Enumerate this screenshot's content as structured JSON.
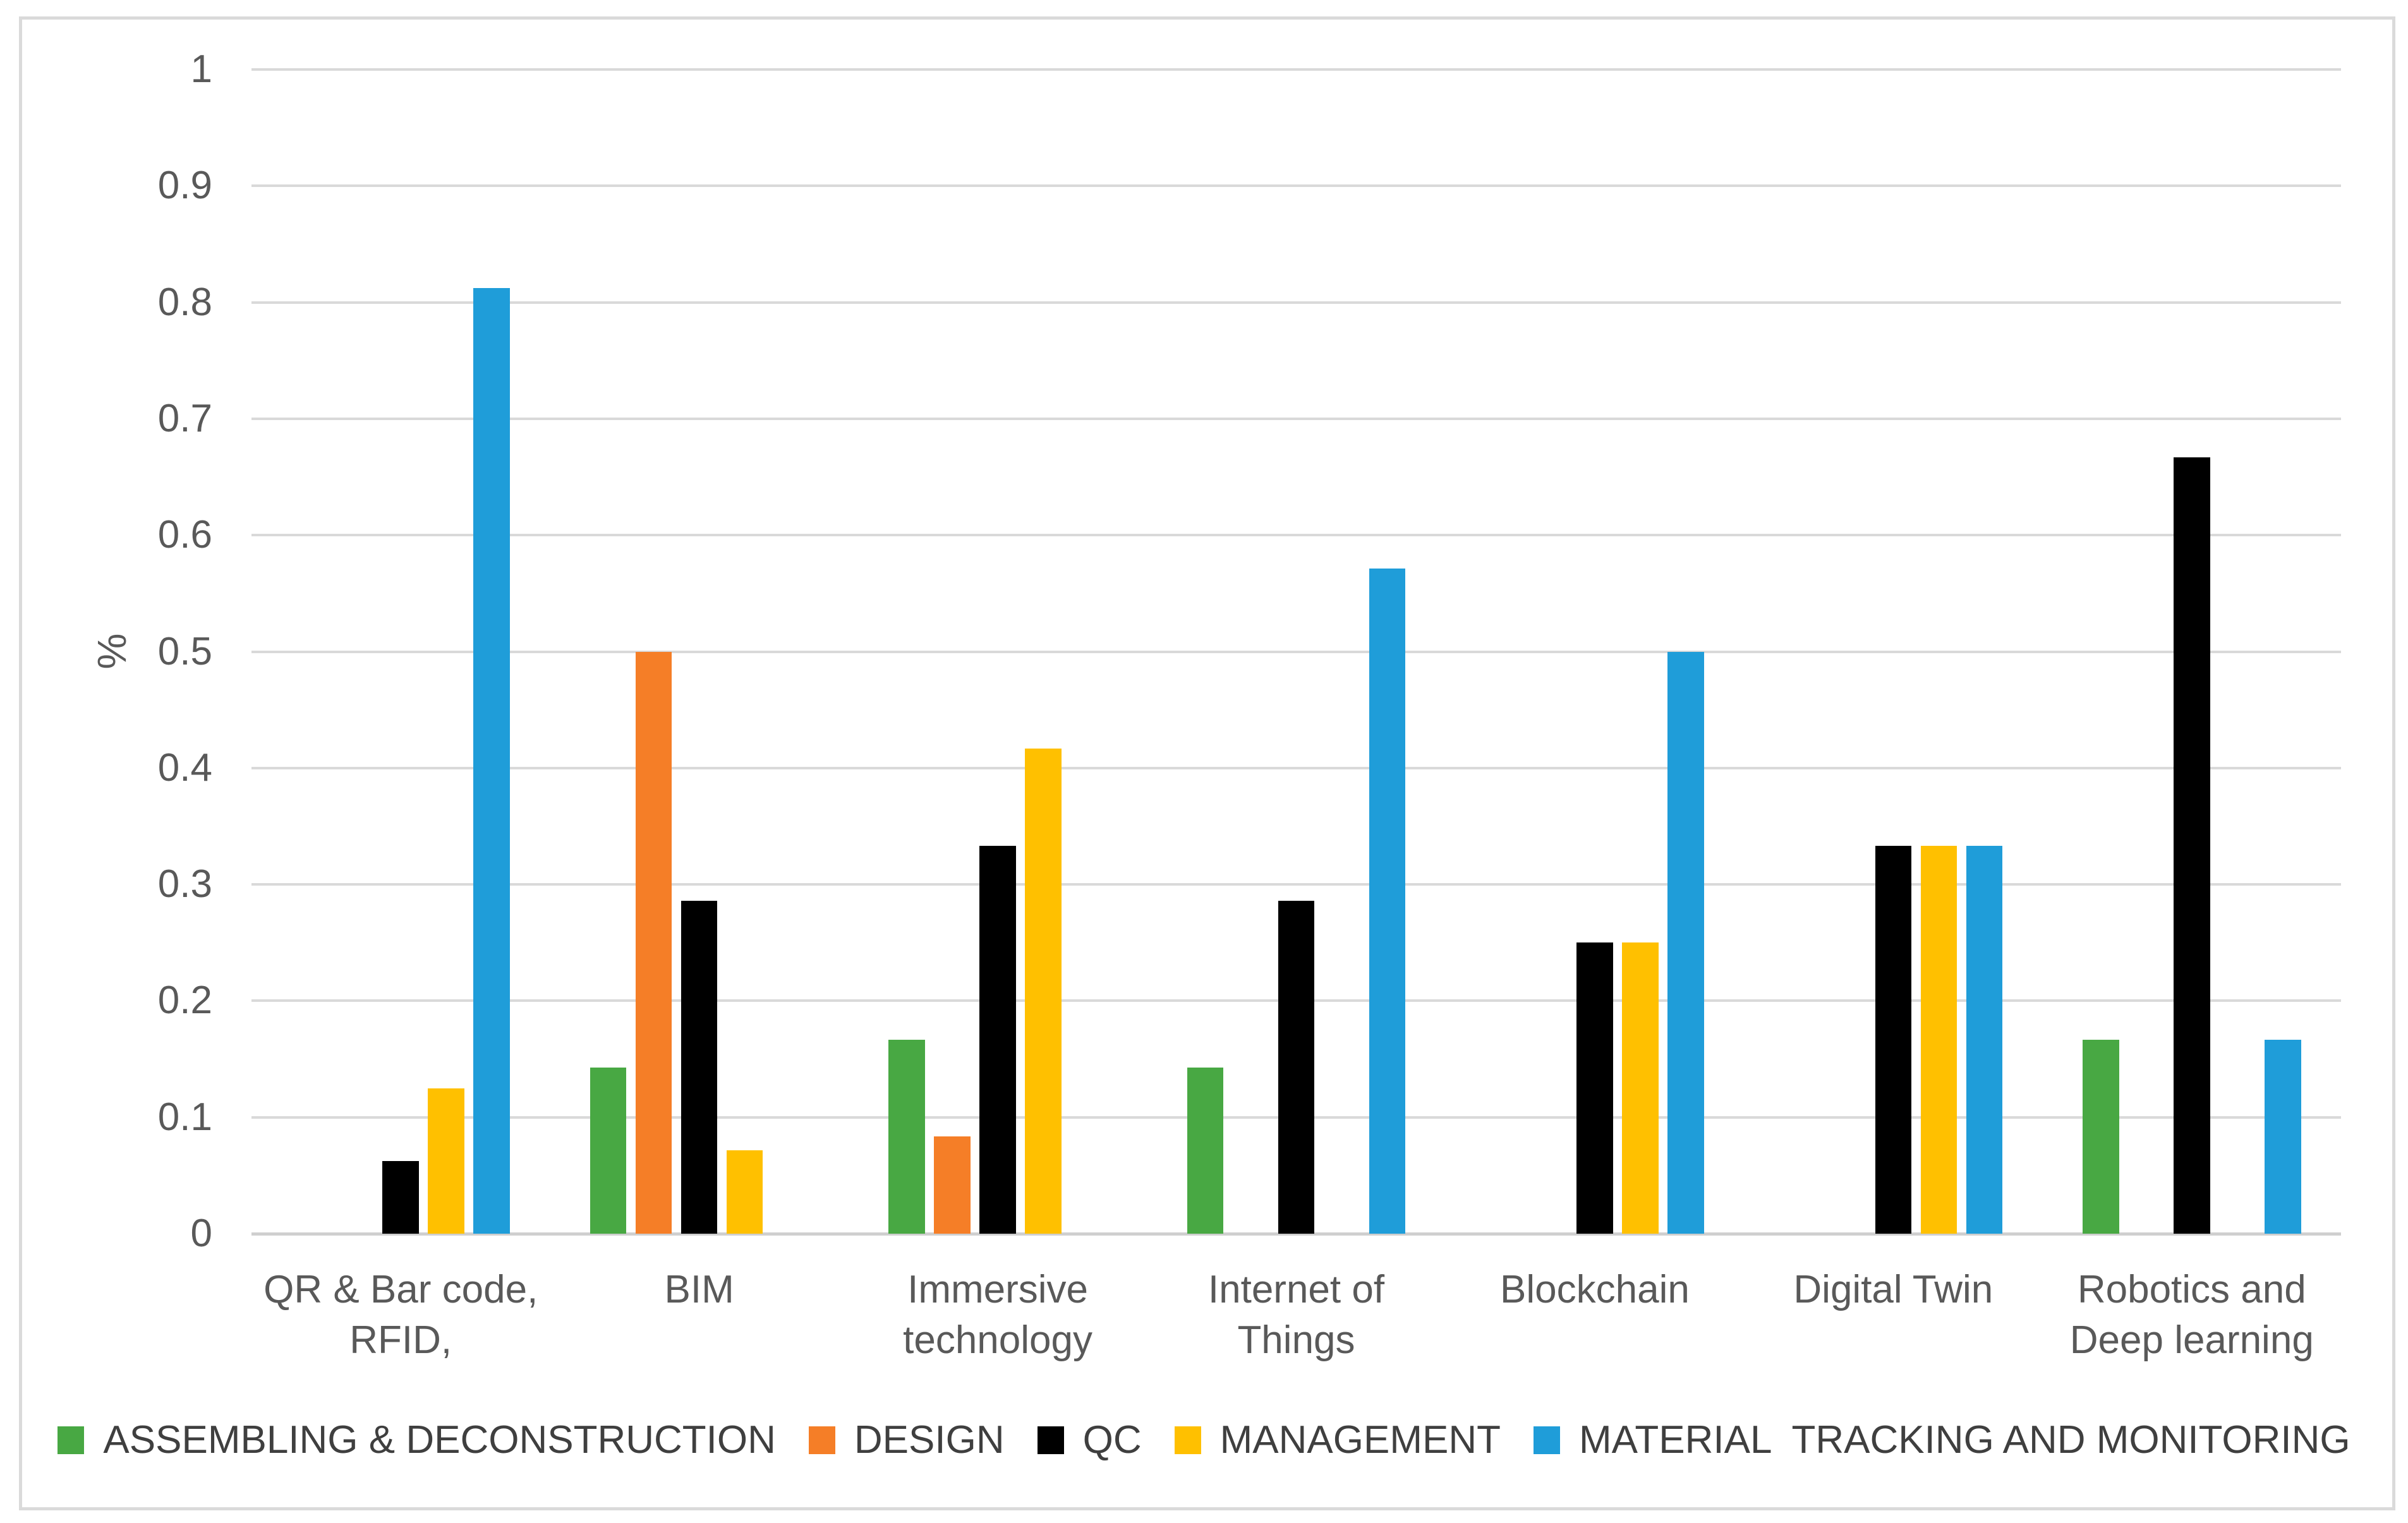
{
  "figure": {
    "background": "#FFFFFF",
    "border_color": "#DADADA",
    "gridline_color": "#D9D9D9",
    "text_color": "#595959"
  },
  "chart_data": {
    "type": "bar",
    "title": "",
    "xlabel": "",
    "ylabel": "%",
    "ylim": [
      0,
      1
    ],
    "ytick_labels": [
      "1",
      "0.9",
      "0.8",
      "0.7",
      "0.6",
      "0.5",
      "0.4",
      "0.3",
      "0.2",
      "0.1",
      "0"
    ],
    "grid": true,
    "legend_position": "bottom",
    "categories": [
      {
        "lines": [
          "QR & Bar code,",
          "RFID,"
        ]
      },
      {
        "lines": [
          "BIM"
        ]
      },
      {
        "lines": [
          "Immersive",
          "technology"
        ]
      },
      {
        "lines": [
          "Internet of",
          "Things"
        ]
      },
      {
        "lines": [
          "Blockchain"
        ]
      },
      {
        "lines": [
          "Digital Twin"
        ]
      },
      {
        "lines": [
          "Robotics and",
          "Deep learning"
        ]
      }
    ],
    "series": [
      {
        "name": "ASSEMBLING & DECONSTRUCTION",
        "color": "#48A843",
        "values": [
          0,
          0.1429,
          0.1667,
          0.1429,
          0,
          0,
          0.1667
        ]
      },
      {
        "name": "DESIGN",
        "color": "#F57E27",
        "values": [
          0,
          0.5,
          0.0833,
          0,
          0,
          0,
          0
        ]
      },
      {
        "name": "QC",
        "color": "#000000",
        "values": [
          0.0625,
          0.2857,
          0.3333,
          0.2857,
          0.25,
          0.3333,
          0.6667
        ]
      },
      {
        "name": "MANAGEMENT",
        "color": "#FFC000",
        "values": [
          0.125,
          0.0714,
          0.4167,
          0,
          0.25,
          0.3333,
          0
        ]
      },
      {
        "name": "MATERIAL  TRACKING AND MONITORING",
        "color": "#1F9DD9",
        "values": [
          0.8125,
          0,
          0,
          0.5714,
          0.5,
          0.3333,
          0.1667
        ]
      }
    ]
  }
}
